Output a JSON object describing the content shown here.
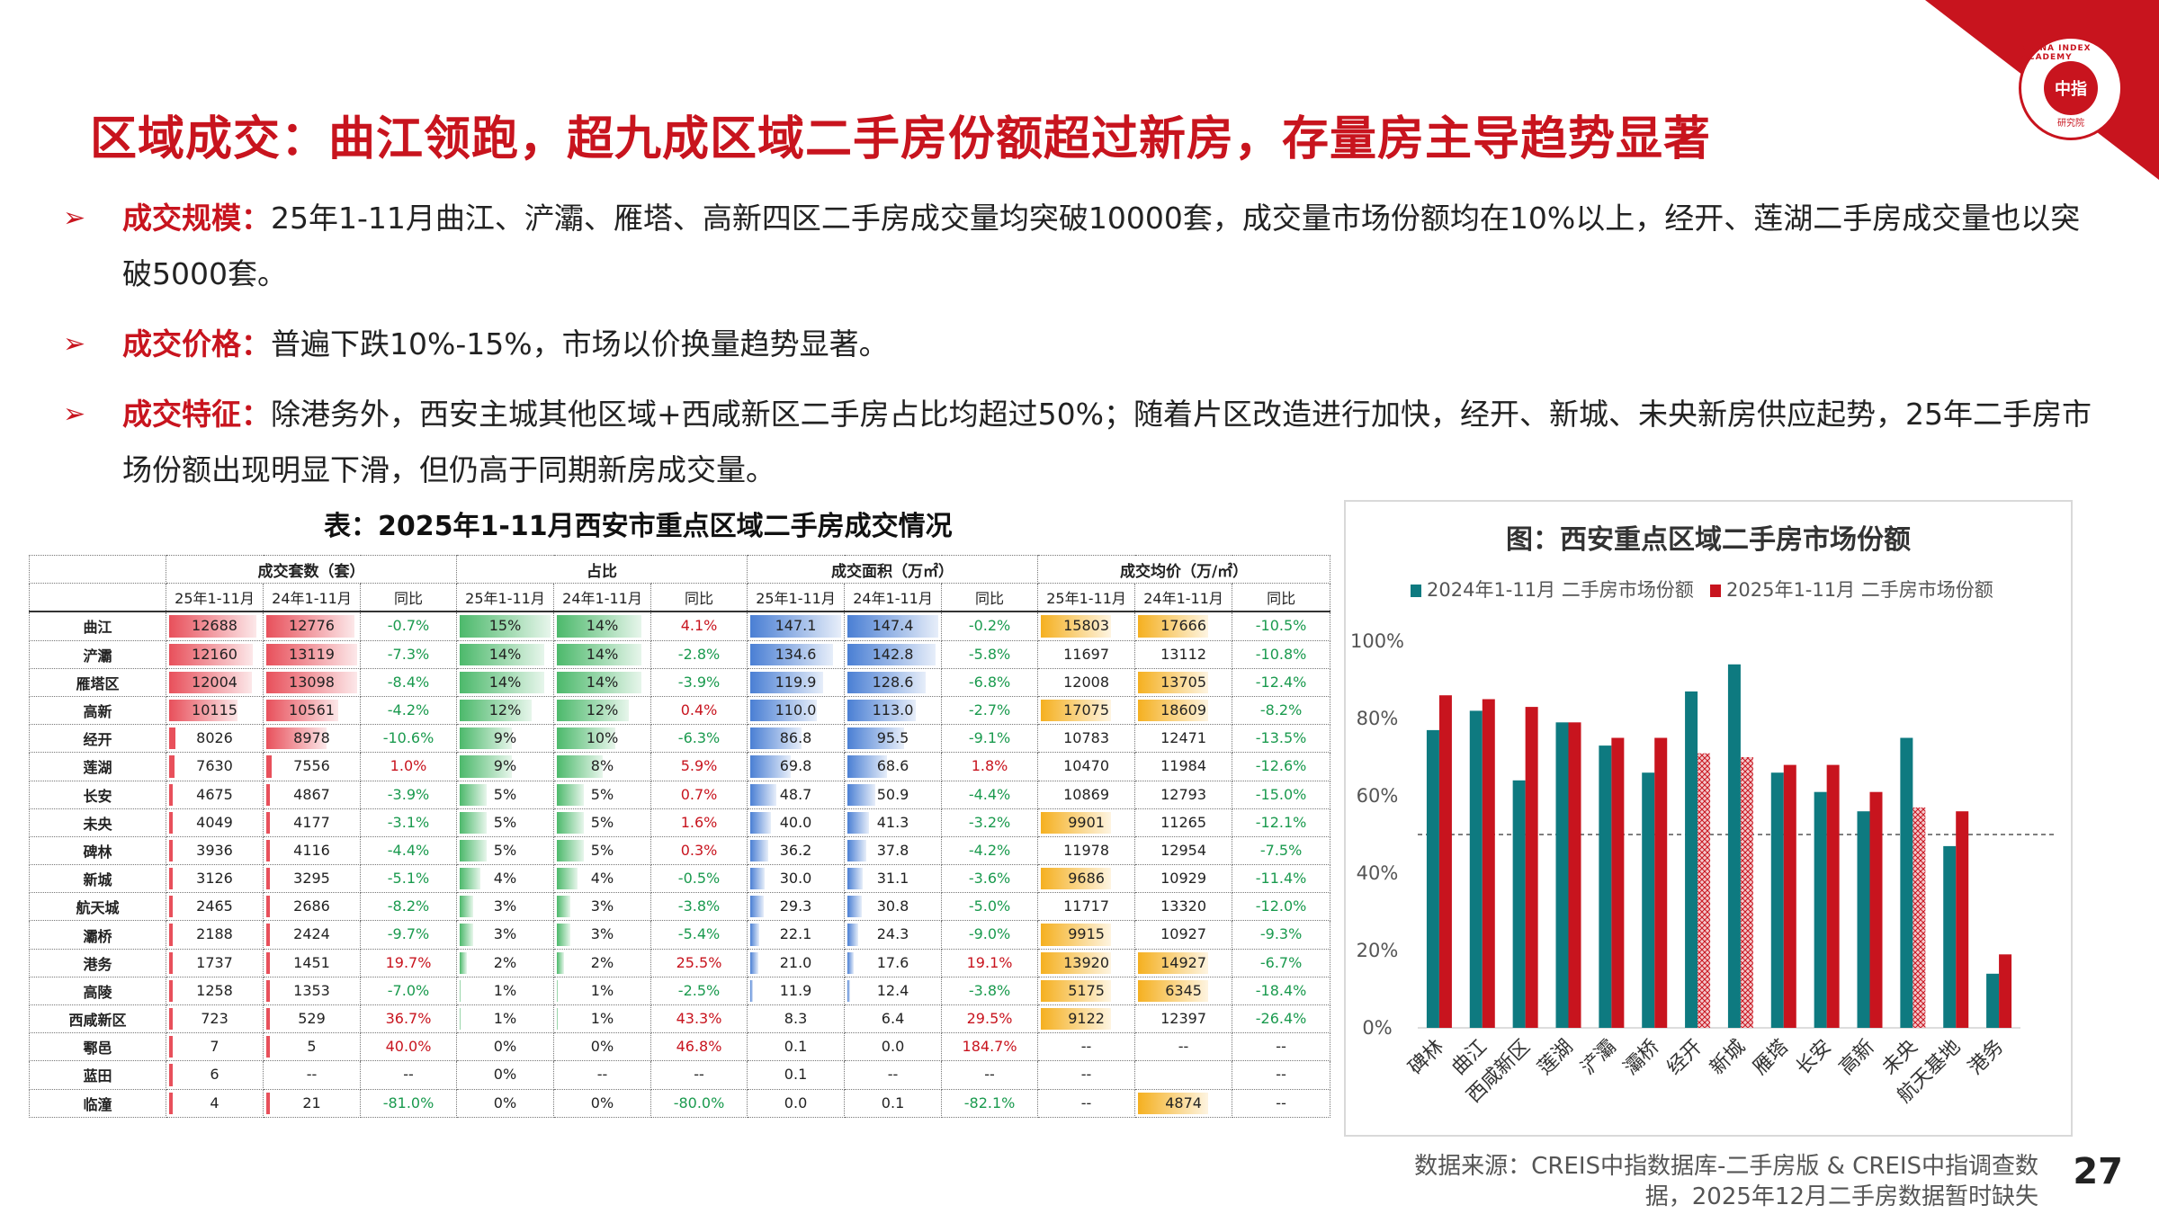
{
  "title": "区域成交：曲江领跑，超九成区域二手房份额超过新房，存量房主导趋势显著",
  "logo": {
    "ring_text": "CHINA INDEX ACADEMY",
    "center_text": "中指",
    "bottom_text": "研究院"
  },
  "bullets": [
    {
      "label": "成交规模：",
      "text": "25年1-11月曲江、浐灞、雁塔、高新四区二手房成交量均突破10000套，成交量市场份额均在10%以上，经开、莲湖二手房成交量也以突破5000套。"
    },
    {
      "label": "成交价格：",
      "text": "普遍下跌10%-15%，市场以价换量趋势显著。"
    },
    {
      "label": "成交特征：",
      "text": "除港务外，西安主城其他区域+西咸新区二手房占比均超过50%；随着片区改造进行加快，经开、新城、未央新房供应起势，25年二手房市场份额出现明显下滑，但仍高于同期新房成交量。"
    }
  ],
  "table": {
    "title": "表：2025年1-11月西安市重点区域二手房成交情况",
    "groups": [
      "成交套数（套）",
      "占比",
      "成交面积（万㎡）",
      "成交均价（万/㎡）"
    ],
    "subheaders": [
      "25年1-11月",
      "24年1-11月",
      "同比"
    ],
    "colors": {
      "count": "#e8505b",
      "share": "#4cb96b",
      "area": "#4a7fd4",
      "price": "#f5b020"
    },
    "rows": [
      {
        "region": "曲江",
        "c25": "12688",
        "c24": "12776",
        "cy": "-0.7%",
        "s25": "15%",
        "s24": "14%",
        "sy": "4.1%",
        "a25": "147.1",
        "a24": "147.4",
        "ay": "-0.2%",
        "p25": "15803",
        "p24": "17666",
        "py": "-10.5%"
      },
      {
        "region": "浐灞",
        "c25": "12160",
        "c24": "13119",
        "cy": "-7.3%",
        "s25": "14%",
        "s24": "14%",
        "sy": "-2.8%",
        "a25": "134.6",
        "a24": "142.8",
        "ay": "-5.8%",
        "p25": "11697",
        "p24": "13112",
        "py": "-10.8%"
      },
      {
        "region": "雁塔区",
        "c25": "12004",
        "c24": "13098",
        "cy": "-8.4%",
        "s25": "14%",
        "s24": "14%",
        "sy": "-3.9%",
        "a25": "119.9",
        "a24": "128.6",
        "ay": "-6.8%",
        "p25": "12008",
        "p24": "13705",
        "py": "-12.4%"
      },
      {
        "region": "高新",
        "c25": "10115",
        "c24": "10561",
        "cy": "-4.2%",
        "s25": "12%",
        "s24": "12%",
        "sy": "0.4%",
        "a25": "110.0",
        "a24": "113.0",
        "ay": "-2.7%",
        "p25": "17075",
        "p24": "18609",
        "py": "-8.2%"
      },
      {
        "region": "经开",
        "c25": "8026",
        "c24": "8978",
        "cy": "-10.6%",
        "s25": "9%",
        "s24": "10%",
        "sy": "-6.3%",
        "a25": "86.8",
        "a24": "95.5",
        "ay": "-9.1%",
        "p25": "10783",
        "p24": "12471",
        "py": "-13.5%"
      },
      {
        "region": "莲湖",
        "c25": "7630",
        "c24": "7556",
        "cy": "1.0%",
        "s25": "9%",
        "s24": "8%",
        "sy": "5.9%",
        "a25": "69.8",
        "a24": "68.6",
        "ay": "1.8%",
        "p25": "10470",
        "p24": "11984",
        "py": "-12.6%"
      },
      {
        "region": "长安",
        "c25": "4675",
        "c24": "4867",
        "cy": "-3.9%",
        "s25": "5%",
        "s24": "5%",
        "sy": "0.7%",
        "a25": "48.7",
        "a24": "50.9",
        "ay": "-4.4%",
        "p25": "10869",
        "p24": "12793",
        "py": "-15.0%"
      },
      {
        "region": "未央",
        "c25": "4049",
        "c24": "4177",
        "cy": "-3.1%",
        "s25": "5%",
        "s24": "5%",
        "sy": "1.6%",
        "a25": "40.0",
        "a24": "41.3",
        "ay": "-3.2%",
        "p25": "9901",
        "p24": "11265",
        "py": "-12.1%"
      },
      {
        "region": "碑林",
        "c25": "3936",
        "c24": "4116",
        "cy": "-4.4%",
        "s25": "5%",
        "s24": "5%",
        "sy": "0.3%",
        "a25": "36.2",
        "a24": "37.8",
        "ay": "-4.2%",
        "p25": "11978",
        "p24": "12954",
        "py": "-7.5%"
      },
      {
        "region": "新城",
        "c25": "3126",
        "c24": "3295",
        "cy": "-5.1%",
        "s25": "4%",
        "s24": "4%",
        "sy": "-0.5%",
        "a25": "30.0",
        "a24": "31.1",
        "ay": "-3.6%",
        "p25": "9686",
        "p24": "10929",
        "py": "-11.4%"
      },
      {
        "region": "航天城",
        "c25": "2465",
        "c24": "2686",
        "cy": "-8.2%",
        "s25": "3%",
        "s24": "3%",
        "sy": "-3.8%",
        "a25": "29.3",
        "a24": "30.8",
        "ay": "-5.0%",
        "p25": "11717",
        "p24": "13320",
        "py": "-12.0%"
      },
      {
        "region": "灞桥",
        "c25": "2188",
        "c24": "2424",
        "cy": "-9.7%",
        "s25": "3%",
        "s24": "3%",
        "sy": "-5.4%",
        "a25": "22.1",
        "a24": "24.3",
        "ay": "-9.0%",
        "p25": "9915",
        "p24": "10927",
        "py": "-9.3%"
      },
      {
        "region": "港务",
        "c25": "1737",
        "c24": "1451",
        "cy": "19.7%",
        "s25": "2%",
        "s24": "2%",
        "sy": "25.5%",
        "a25": "21.0",
        "a24": "17.6",
        "ay": "19.1%",
        "p25": "13920",
        "p24": "14927",
        "py": "-6.7%"
      },
      {
        "region": "高陵",
        "c25": "1258",
        "c24": "1353",
        "cy": "-7.0%",
        "s25": "1%",
        "s24": "1%",
        "sy": "-2.5%",
        "a25": "11.9",
        "a24": "12.4",
        "ay": "-3.8%",
        "p25": "5175",
        "p24": "6345",
        "py": "-18.4%"
      },
      {
        "region": "西咸新区",
        "c25": "723",
        "c24": "529",
        "cy": "36.7%",
        "s25": "1%",
        "s24": "1%",
        "sy": "43.3%",
        "a25": "8.3",
        "a24": "6.4",
        "ay": "29.5%",
        "p25": "9122",
        "p24": "12397",
        "py": "-26.4%"
      },
      {
        "region": "鄠邑",
        "c25": "7",
        "c24": "5",
        "cy": "40.0%",
        "s25": "0%",
        "s24": "0%",
        "sy": "46.8%",
        "a25": "0.1",
        "a24": "0.0",
        "ay": "184.7%",
        "p25": "--",
        "p24": "--",
        "py": "--"
      },
      {
        "region": "蓝田",
        "c25": "6",
        "c24": "--",
        "cy": "--",
        "s25": "0%",
        "s24": "--",
        "sy": "--",
        "a25": "0.1",
        "a24": "--",
        "ay": "--",
        "p25": "--",
        "p24": "",
        "py": "--"
      },
      {
        "region": "临潼",
        "c25": "4",
        "c24": "21",
        "cy": "-81.0%",
        "s25": "0%",
        "s24": "0%",
        "sy": "-80.0%",
        "a25": "0.0",
        "a24": "0.1",
        "ay": "-82.1%",
        "p25": "--",
        "p24": "4874",
        "py": "--"
      }
    ]
  },
  "chart_data": {
    "type": "bar",
    "title": "图：西安重点区域二手房市场份额",
    "categories": [
      "碑林",
      "曲江",
      "西咸新区",
      "莲湖",
      "浐灞",
      "灞桥",
      "经开",
      "新城",
      "雁塔",
      "长安",
      "高新",
      "未央",
      "航天基地",
      "港务"
    ],
    "series": [
      {
        "name": "2024年1-11月 二手房市场份额",
        "color": "#0e7a80",
        "values": [
          77,
          82,
          64,
          79,
          73,
          66,
          87,
          94,
          66,
          61,
          56,
          75,
          47,
          14
        ]
      },
      {
        "name": "2025年1-11月 二手房市场份额",
        "color": "#c8141e",
        "values": [
          86,
          85,
          83,
          79,
          75,
          75,
          71,
          70,
          68,
          68,
          61,
          57,
          56,
          19
        ],
        "hatched": [
          false,
          false,
          false,
          false,
          false,
          false,
          true,
          true,
          false,
          false,
          false,
          true,
          false,
          false
        ]
      }
    ],
    "ylim": [
      0,
      100
    ],
    "yticks": [
      "0%",
      "20%",
      "40%",
      "60%",
      "80%",
      "100%"
    ],
    "reference_line": 50,
    "legend_position": "top",
    "grid": false
  },
  "source": "数据来源：CREIS中指数据库-二手房版 & CREIS中指调查数据，2025年12月二手房数据暂时缺失",
  "page_number": "27"
}
